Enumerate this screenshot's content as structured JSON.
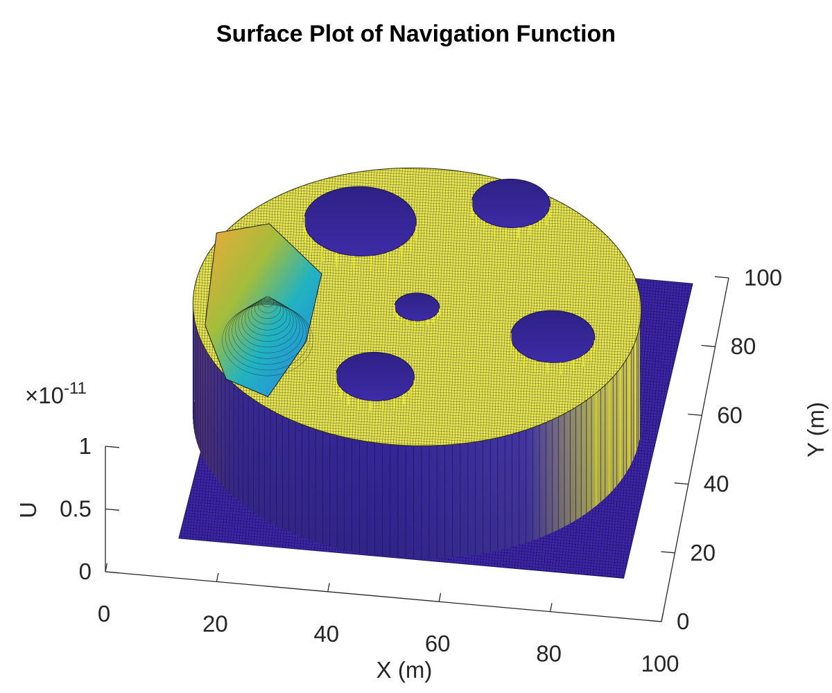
{
  "chart_data": {
    "type": "surface",
    "title": "Surface Plot of Navigation Function",
    "xlabel": "X (m)",
    "ylabel": "Y (m)",
    "zlabel": "U",
    "z_exponent_label": "×10",
    "z_exponent_power": "-11",
    "xlim": [
      0,
      100
    ],
    "ylim": [
      0,
      100
    ],
    "zlim": [
      0,
      1e-11
    ],
    "x_ticks": [
      "0",
      "20",
      "40",
      "60",
      "80",
      "100"
    ],
    "y_ticks": [
      "0",
      "20",
      "40",
      "60",
      "80",
      "100"
    ],
    "z_ticks": [
      "0",
      "0.5",
      "1"
    ],
    "colormap": "parula",
    "grid": false,
    "workspace": {
      "center": [
        50,
        50
      ],
      "radius": 40,
      "plateau_value": 1e-11
    },
    "obstacles": [
      {
        "center": [
          37,
          73
        ],
        "radius": 10
      },
      {
        "center": [
          63,
          82
        ],
        "radius": 7
      },
      {
        "center": [
          50,
          50
        ],
        "radius": 4
      },
      {
        "center": [
          75,
          45
        ],
        "radius": 7.5
      },
      {
        "center": [
          45,
          29
        ],
        "radius": 7
      }
    ],
    "goal": [
      15,
      45
    ],
    "colors": {
      "floor": "#3e26a8",
      "floor_mesh": "#0e0a40",
      "plateau": "#e8e654",
      "plateau_mesh": "#3a3a14",
      "wall": "#3e2ba6",
      "wall_highlight": "#f9fb0e"
    }
  }
}
